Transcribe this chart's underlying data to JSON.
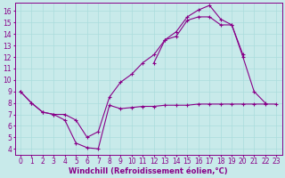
{
  "background_color": "#c8eaea",
  "line_color": "#880088",
  "grid_color": "#aadddd",
  "xlabel": "Windchill (Refroidissement éolien,°C)",
  "xlabel_fontsize": 6.0,
  "tick_fontsize": 5.5,
  "xlim": [
    -0.5,
    23.5
  ],
  "ylim": [
    3.5,
    16.7
  ],
  "xticks": [
    0,
    1,
    2,
    3,
    4,
    5,
    6,
    7,
    8,
    9,
    10,
    11,
    12,
    13,
    14,
    15,
    16,
    17,
    18,
    19,
    20,
    21,
    22,
    23
  ],
  "yticks": [
    4,
    5,
    6,
    7,
    8,
    9,
    10,
    11,
    12,
    13,
    14,
    15,
    16
  ],
  "line1_x": [
    0,
    1,
    2,
    3,
    4,
    5,
    6,
    7,
    8,
    9,
    10,
    11,
    12,
    13,
    14,
    15,
    16,
    17,
    18,
    19,
    20,
    21,
    22,
    23
  ],
  "line1_y": [
    9.0,
    8.0,
    7.2,
    7.0,
    6.5,
    4.5,
    4.1,
    4.0,
    7.8,
    7.5,
    7.6,
    7.7,
    7.7,
    7.8,
    7.8,
    7.8,
    7.9,
    7.9,
    7.9,
    7.9,
    7.9,
    7.9,
    7.9,
    7.9
  ],
  "line2_x": [
    0,
    1,
    2,
    3,
    4,
    5,
    6,
    7,
    8,
    9,
    10,
    11,
    12,
    13,
    14,
    15,
    16,
    17,
    18,
    19,
    20,
    21,
    22
  ],
  "line2_y": [
    9.0,
    8.0,
    7.2,
    7.0,
    7.0,
    6.5,
    5.0,
    5.5,
    8.5,
    9.8,
    10.5,
    11.5,
    12.2,
    13.5,
    13.8,
    15.2,
    15.5,
    15.5,
    14.8,
    14.8,
    12.0,
    9.0,
    8.0
  ],
  "line3_x": [
    12,
    13,
    14,
    15,
    16,
    17,
    18,
    19,
    20
  ],
  "line3_y": [
    11.5,
    13.5,
    14.2,
    15.5,
    16.1,
    16.5,
    15.3,
    14.8,
    12.2
  ]
}
